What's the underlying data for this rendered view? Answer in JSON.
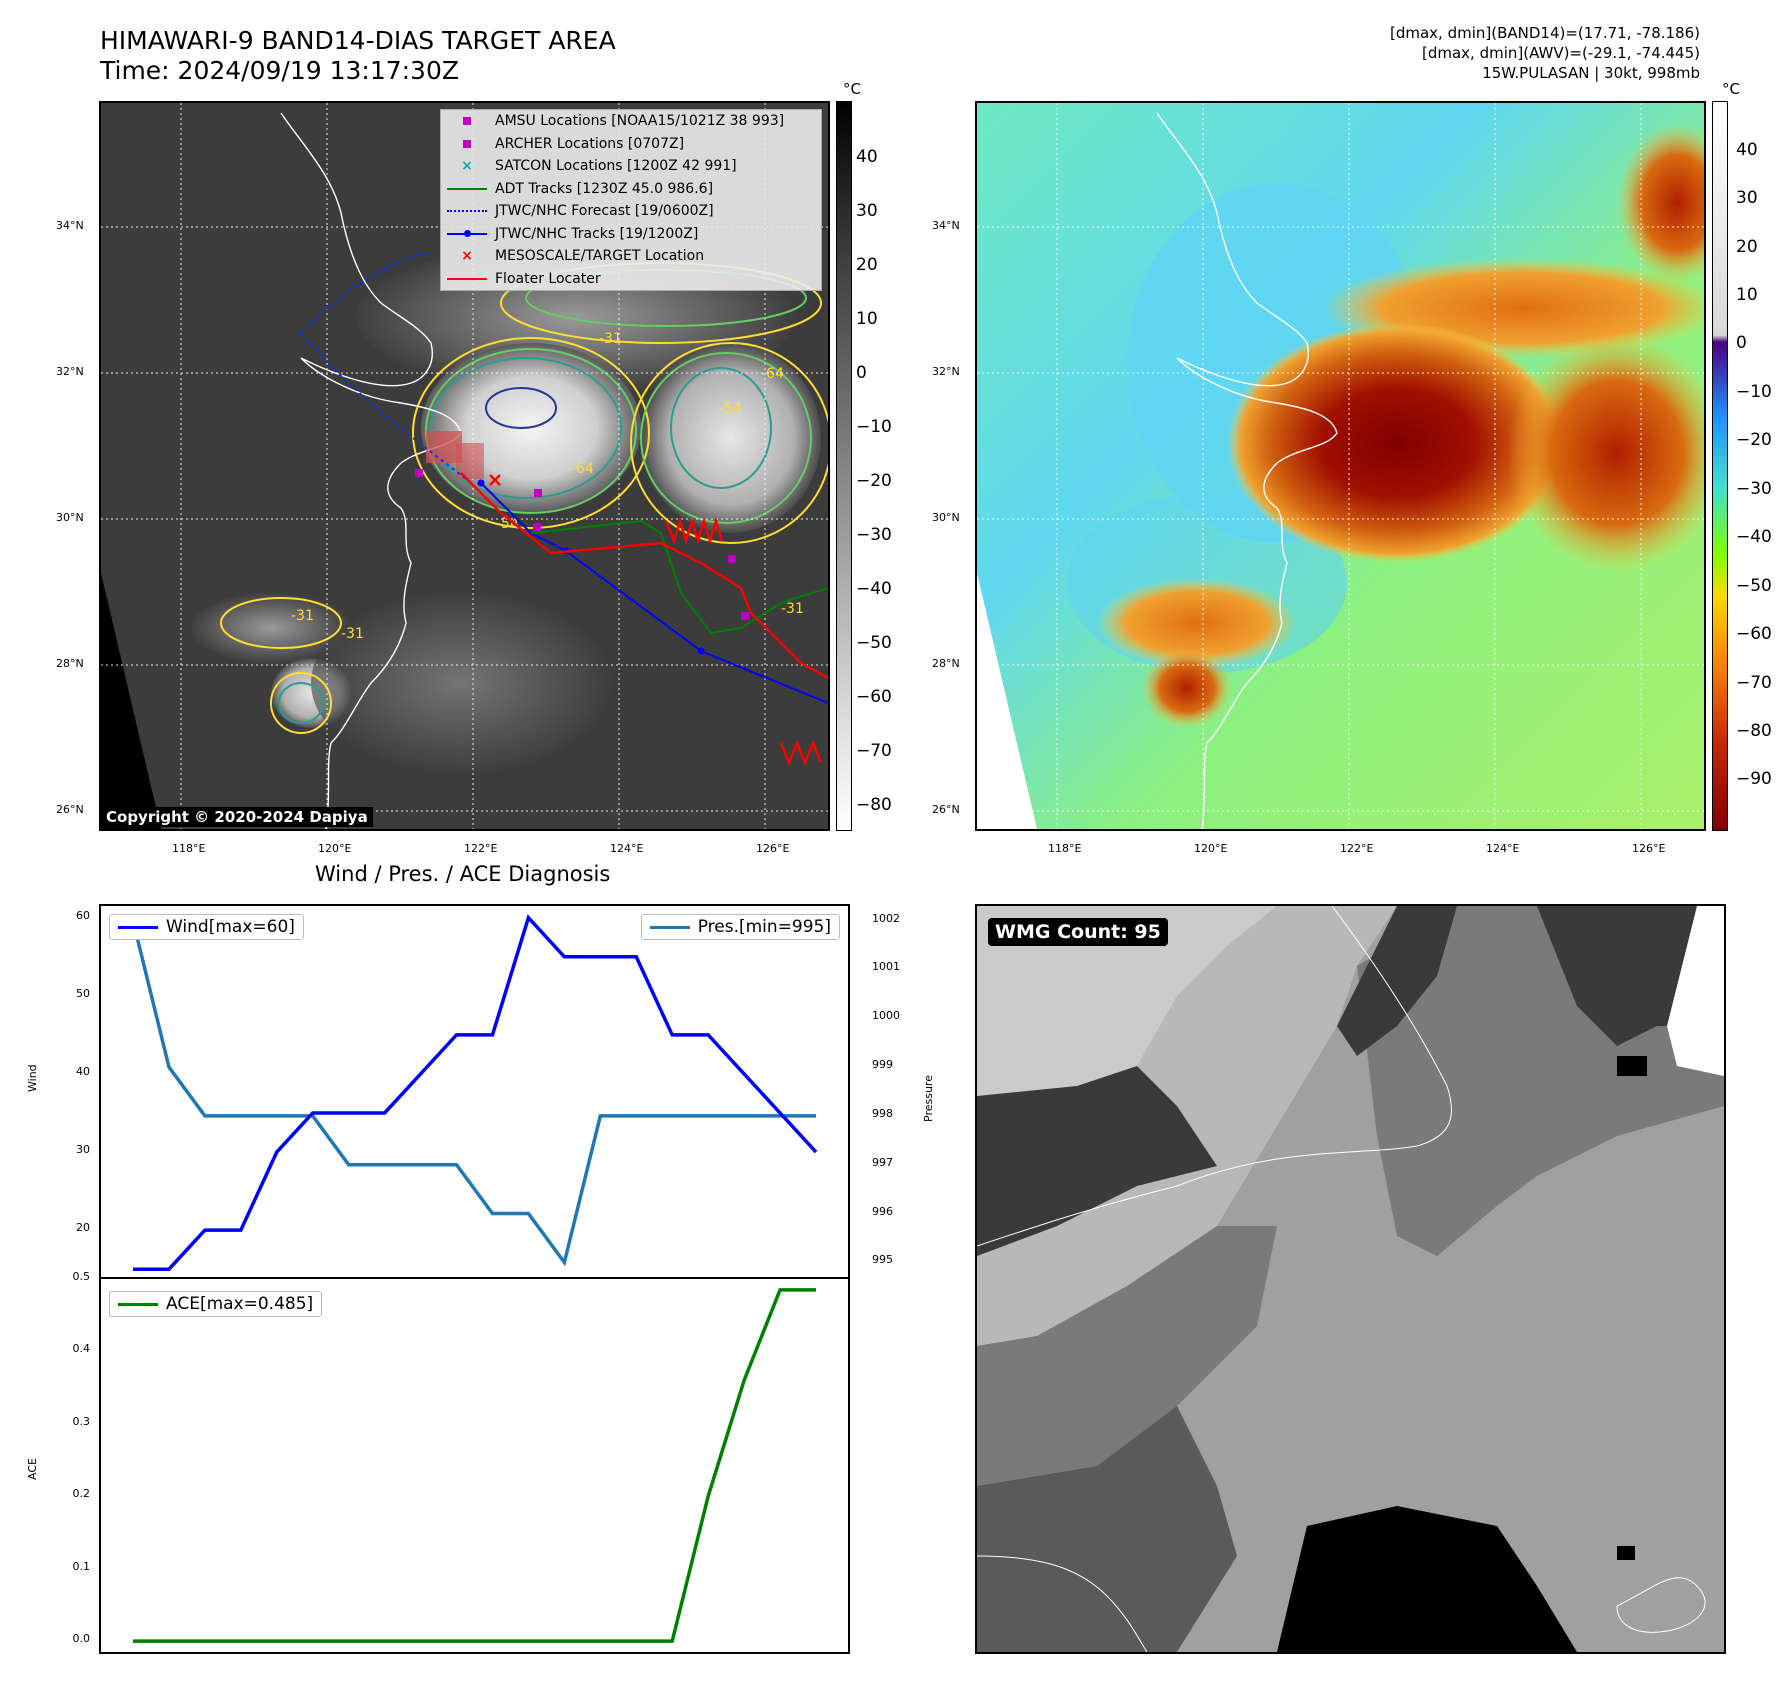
{
  "header": {
    "title_line1": "HIMAWARI-9 BAND14-DIAS TARGET AREA",
    "title_line2": "Time: 2024/09/19 13:17:30Z",
    "info_line1": "[dmax, dmin](BAND14)=(17.71, -78.186)",
    "info_line2": "[dmax, dmin](AWV)=(-29.1, -74.445)",
    "info_line3": "15W.PULASAN | 30kt, 998mb"
  },
  "map_left": {
    "lat_labels": [
      "34°N",
      "32°N",
      "30°N",
      "28°N",
      "26°N"
    ],
    "lon_labels": [
      "118°E",
      "120°E",
      "122°E",
      "124°E",
      "126°E"
    ],
    "copyright": "Copyright © 2020-2024 Dapiya",
    "contour_labels": [
      "-64",
      "-54",
      "-54",
      "-31",
      "-31",
      "-31",
      "-31",
      "-64"
    ],
    "colorbar_unit": "°C",
    "colorbar_ticks": [
      "40",
      "30",
      "20",
      "10",
      "0",
      "−10",
      "−20",
      "−30",
      "−40",
      "−50",
      "−60",
      "−70",
      "−80"
    ],
    "legend": [
      {
        "label": "AMSU Locations [NOAA15/1021Z 38 993]",
        "icon": "magenta-square",
        "color": "#c000c0"
      },
      {
        "label": "ARCHER Locations [0707Z]",
        "icon": "magenta-square",
        "color": "#c000c0"
      },
      {
        "label": "SATCON Locations [1200Z 42 991]",
        "icon": "cyan-x",
        "color": "#00b0b0"
      },
      {
        "label": "ADT Tracks [1230Z 45.0 986.6]",
        "icon": "green-line",
        "color": "#008000"
      },
      {
        "label": "JTWC/NHC Forecast [19/0600Z]",
        "icon": "blue-dotted-line",
        "color": "#0000ff"
      },
      {
        "label": "JTWC/NHC Tracks [19/1200Z]",
        "icon": "blue-line-dot",
        "color": "#0000ff"
      },
      {
        "label": "MESOSCALE/TARGET Location",
        "icon": "red-x",
        "color": "#ff0000"
      },
      {
        "label": "Floater Locater",
        "icon": "red-line",
        "color": "#ff0000"
      }
    ]
  },
  "map_right": {
    "lat_labels": [
      "34°N",
      "32°N",
      "30°N",
      "28°N",
      "26°N"
    ],
    "lon_labels": [
      "118°E",
      "120°E",
      "122°E",
      "124°E",
      "126°E"
    ],
    "colorbar_unit": "°C",
    "colorbar_ticks": [
      "40",
      "30",
      "20",
      "10",
      "0",
      "−10",
      "−20",
      "−30",
      "−40",
      "−50",
      "−60",
      "−70",
      "−80",
      "−90"
    ]
  },
  "wmg": {
    "count_label": "WMG Count: 95"
  },
  "chart_data": [
    {
      "type": "line",
      "title": "Wind / Pres. / ACE Diagnosis",
      "ylabel": "Wind",
      "y2label": "Pressure",
      "x": [
        0,
        1,
        2,
        3,
        4,
        5,
        6,
        7,
        8,
        9,
        10,
        11,
        12,
        13,
        14,
        15,
        16,
        17,
        18,
        19
      ],
      "series": [
        {
          "name": "Wind",
          "legend": "Wind[max=60]",
          "axis": "left",
          "color": "#0000ff",
          "values": [
            15,
            15,
            20,
            20,
            30,
            35,
            35,
            35,
            40,
            45,
            45,
            60,
            55,
            55,
            55,
            45,
            45,
            40,
            35,
            30
          ]
        },
        {
          "name": "Pres.",
          "legend": "Pres.[min=995]",
          "axis": "right",
          "color": "#1f77b4",
          "values": [
            1002,
            999,
            998,
            998,
            998,
            998,
            997,
            997,
            997,
            997,
            996,
            996,
            995,
            998,
            998,
            998,
            998,
            998,
            998,
            998
          ]
        }
      ],
      "ylim": [
        14,
        61.5
      ],
      "y2lim": [
        994.7,
        1002.3
      ],
      "yticks": [
        "60",
        "50",
        "40",
        "30",
        "20"
      ],
      "y2ticks": [
        "1002",
        "1001",
        "1000",
        "999",
        "998",
        "997",
        "996",
        "995"
      ]
    },
    {
      "type": "line",
      "ylabel": "ACE",
      "x": [
        0,
        1,
        2,
        3,
        4,
        5,
        6,
        7,
        8,
        9,
        10,
        11,
        12,
        13,
        14,
        15,
        16,
        17,
        18,
        19
      ],
      "series": [
        {
          "name": "ACE",
          "legend": "ACE[max=0.485]",
          "color": "#008000",
          "values": [
            0,
            0,
            0,
            0,
            0,
            0,
            0,
            0,
            0,
            0,
            0,
            0,
            0,
            0,
            0,
            0,
            0.2,
            0.36,
            0.485,
            0.485
          ]
        }
      ],
      "ylim": [
        -0.015,
        0.5
      ],
      "yticks": [
        "0.5",
        "0.4",
        "0.3",
        "0.2",
        "0.1",
        "0.0"
      ]
    }
  ]
}
